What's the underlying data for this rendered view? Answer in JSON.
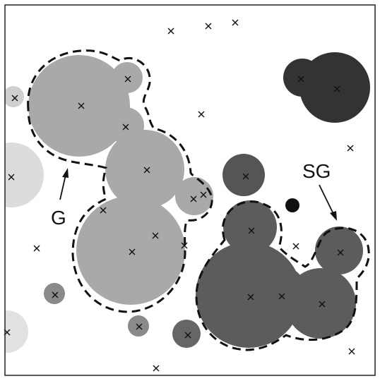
{
  "labels": {
    "g": "G",
    "sg": "SG"
  },
  "colors": {
    "frame": "#222222",
    "light_gray": "#dcdcdc",
    "medium_gray": "#a9a9a9",
    "dark_gray": "#5c5c5c",
    "darkest": "#333333",
    "black_dot": "#111111",
    "cross": "#111111",
    "dashed_outline": "#111111"
  },
  "legend_note": ""
}
